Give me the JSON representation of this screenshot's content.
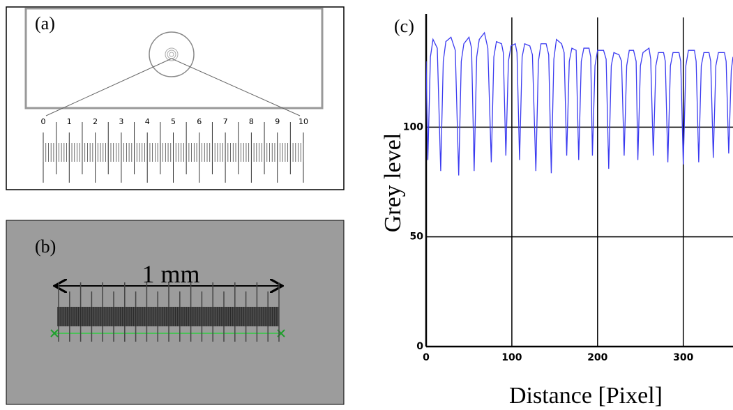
{
  "panel_a": {
    "label": "(a)",
    "ruler_labels": [
      "0",
      "1",
      "2",
      "3",
      "4",
      "5",
      "6",
      "7",
      "8",
      "9",
      "10"
    ]
  },
  "panel_b": {
    "label": "(b)",
    "scale_label": "1 mm"
  },
  "chart_data": {
    "type": "line",
    "panel_label": "(c)",
    "xlabel": "Distance [Pixel]",
    "ylabel": "Grey level",
    "color": "#3a3af0",
    "grid": true,
    "xlim": [
      0,
      358
    ],
    "ylim": [
      0,
      150
    ],
    "xticks": [
      0,
      100,
      200,
      300
    ],
    "yticks": [
      0,
      50,
      100
    ],
    "x": [
      0,
      2,
      5,
      8,
      13,
      17,
      20,
      23,
      29,
      34,
      38,
      41,
      44,
      50,
      53,
      56,
      59,
      62,
      68,
      72,
      76,
      79,
      82,
      88,
      90,
      93,
      96,
      99,
      104,
      106,
      109,
      112,
      115,
      121,
      124,
      128,
      131,
      134,
      140,
      143,
      146,
      149,
      152,
      158,
      161,
      164,
      167,
      170,
      175,
      178,
      181,
      184,
      190,
      192,
      194,
      197,
      200,
      207,
      210,
      213,
      216,
      219,
      225,
      228,
      231,
      234,
      237,
      242,
      245,
      247,
      250,
      253,
      260,
      262,
      265,
      268,
      271,
      277,
      279,
      282,
      285,
      288,
      295,
      297,
      300,
      303,
      306,
      313,
      315,
      318,
      321,
      324,
      330,
      332,
      335,
      338,
      341,
      348,
      350,
      353,
      356,
      358
    ],
    "values": [
      130,
      85,
      132,
      140,
      136,
      80,
      130,
      139,
      141,
      135,
      78,
      130,
      138,
      141,
      136,
      80,
      132,
      140,
      143,
      136,
      84,
      132,
      139,
      138,
      134,
      87,
      130,
      137,
      138,
      134,
      85,
      132,
      138,
      137,
      133,
      80,
      130,
      138,
      138,
      133,
      79,
      131,
      140,
      138,
      134,
      87,
      130,
      136,
      135,
      85,
      130,
      136,
      136,
      132,
      87,
      128,
      135,
      135,
      131,
      81,
      128,
      134,
      133,
      130,
      87,
      128,
      135,
      135,
      130,
      85,
      128,
      134,
      136,
      131,
      87,
      128,
      134,
      134,
      130,
      84,
      128,
      134,
      134,
      130,
      83,
      128,
      135,
      135,
      130,
      84,
      128,
      134,
      134,
      130,
      86,
      128,
      134,
      134,
      130,
      88,
      126,
      132
    ]
  }
}
